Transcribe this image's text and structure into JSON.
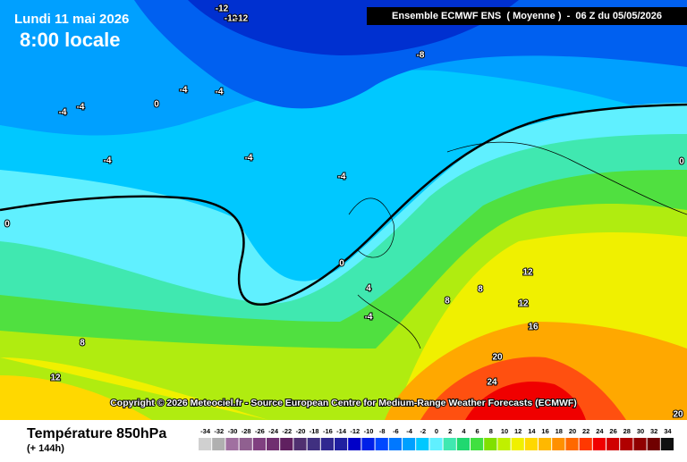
{
  "header": {
    "date": "Lundi 11 mai 2026",
    "time": "8:00 locale",
    "run": "Ensemble ECMWF ENS  ( Moyenne )  -  06 Z du 05/05/2026"
  },
  "copyright": "Copyright © 2026 Meteociel.fr - Source European Centre for Medium-Range Weather Forecasts (ECMWF)",
  "footer": {
    "title": "Température 850hPa",
    "lead": "(+ 144h)"
  },
  "contour_labels": [
    -12,
    -12,
    -12,
    -8,
    -4,
    -4,
    0,
    -4,
    -4,
    -4,
    -4,
    -4,
    0,
    0,
    4,
    -4,
    8,
    8,
    12,
    12,
    16,
    8,
    12,
    20,
    24,
    20,
    0
  ],
  "scale": {
    "values": [
      -34,
      -32,
      -30,
      -28,
      -26,
      -24,
      -22,
      -20,
      -18,
      -16,
      -14,
      -12,
      -10,
      -8,
      -6,
      -4,
      -2,
      0,
      2,
      4,
      6,
      8,
      10,
      12,
      14,
      16,
      18,
      20,
      22,
      24,
      26,
      28,
      30,
      32,
      34
    ],
    "colors": [
      "#d0d0d0",
      "#b0b0b0",
      "#a070a0",
      "#906090",
      "#804080",
      "#703070",
      "#602060",
      "#503070",
      "#403080",
      "#302890",
      "#2020a0",
      "#0000c8",
      "#0020e8",
      "#0048ff",
      "#0078ff",
      "#00a0ff",
      "#00c8ff",
      "#60f0ff",
      "#40e8b0",
      "#20d870",
      "#40e040",
      "#80e000",
      "#c0f000",
      "#f0f000",
      "#ffd800",
      "#ffb800",
      "#ff9000",
      "#ff6800",
      "#ff3800",
      "#f00000",
      "#d00000",
      "#b00000",
      "#900000",
      "#700000",
      "#101010"
    ]
  }
}
